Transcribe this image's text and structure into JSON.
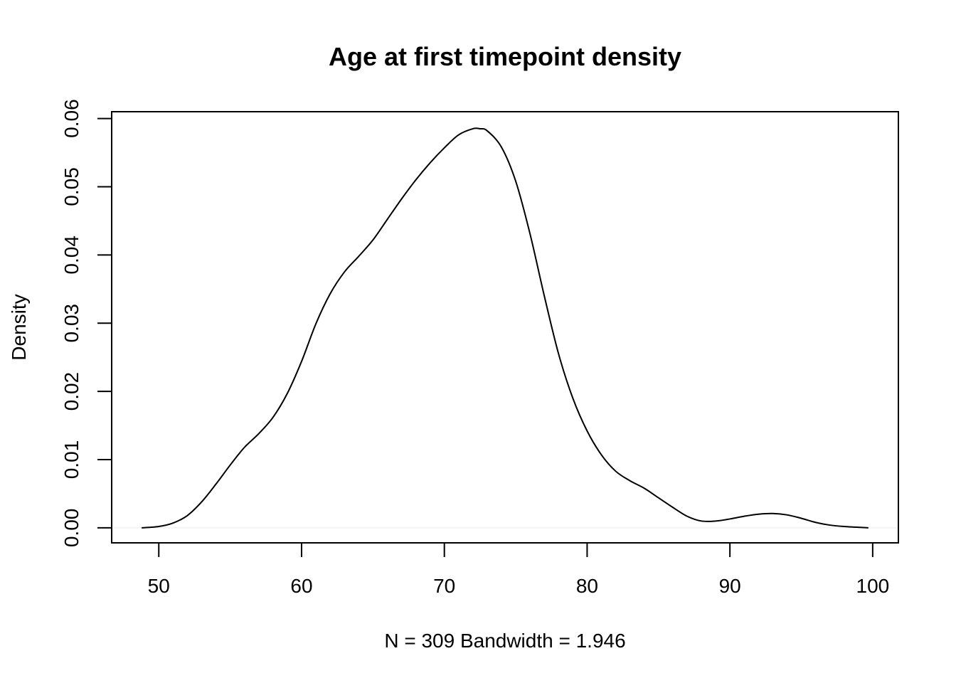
{
  "chart_data": {
    "type": "line",
    "title": "Age at first timepoint density",
    "xlabel": "N = 309   Bandwidth = 1.946",
    "ylabel": "Density",
    "xlim": [
      46.7,
      101.8
    ],
    "ylim": [
      -0.0022,
      0.061
    ],
    "x_ticks": [
      50,
      60,
      70,
      80,
      90,
      100
    ],
    "x_tick_labels": [
      "50",
      "60",
      "70",
      "80",
      "90",
      "100"
    ],
    "y_ticks": [
      0.0,
      0.01,
      0.02,
      0.03,
      0.04,
      0.05,
      0.06
    ],
    "y_tick_labels": [
      "0.00",
      "0.01",
      "0.02",
      "0.03",
      "0.04",
      "0.05",
      "0.06"
    ],
    "grid": false,
    "legend": "none",
    "series": [
      {
        "x": [
          48.8,
          50,
          51,
          52,
          53,
          54,
          55,
          56,
          57,
          58,
          59,
          60,
          61,
          62,
          63,
          64,
          65,
          66,
          67,
          68,
          69,
          70,
          71,
          72,
          72.5,
          73,
          74,
          75,
          76,
          77,
          78,
          79,
          80,
          81,
          82,
          83,
          84,
          85,
          86,
          87,
          88,
          89,
          90,
          91,
          92,
          93,
          94,
          95,
          96,
          97,
          98,
          99.7
        ],
        "y": [
          0.0,
          0.0002,
          0.0007,
          0.0018,
          0.0038,
          0.0064,
          0.0092,
          0.0118,
          0.0138,
          0.0162,
          0.0197,
          0.0244,
          0.0299,
          0.0343,
          0.0375,
          0.0398,
          0.0422,
          0.0452,
          0.0482,
          0.051,
          0.0535,
          0.0557,
          0.0576,
          0.0585,
          0.0585,
          0.0582,
          0.0558,
          0.0508,
          0.0431,
          0.034,
          0.0255,
          0.019,
          0.0142,
          0.0107,
          0.0083,
          0.0069,
          0.0058,
          0.0044,
          0.003,
          0.0017,
          0.001,
          0.001,
          0.0013,
          0.0017,
          0.002,
          0.0021,
          0.0019,
          0.0014,
          0.0008,
          0.0004,
          0.0002,
          0.0
        ]
      }
    ]
  }
}
